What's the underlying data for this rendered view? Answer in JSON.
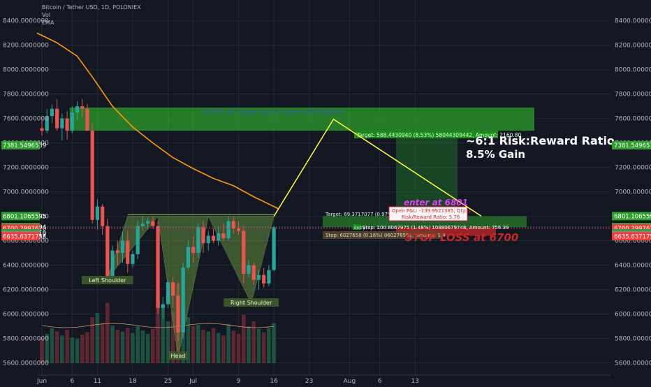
{
  "header": {
    "title": "Bitcoin / Tether USD, 1D, POLONIEX",
    "vol": "Vol",
    "ema": "EMA"
  },
  "colors": {
    "background": "#131722",
    "grid": "#232835",
    "up": "#26a69a",
    "down": "#ef5350",
    "ema": "#ff9800",
    "zone_green": "#2e9e2e",
    "trend_yellow": "#ffff33",
    "stop_red": "#ff1744",
    "shape_fill": "#5f8a3a"
  },
  "chart_data": {
    "type": "candlestick",
    "ylim": [
      5500,
      8570
    ],
    "y_ticks": [
      "8400.0000000",
      "8200.0000000",
      "8000.0000000",
      "7800.0000000",
      "7600.0000000",
      "7400.0000000",
      "7200.0000000",
      "7000.0000000",
      "6800.0000000",
      "6600.0000000",
      "6400.0000000",
      "6200.0000000",
      "6000.0000000",
      "5800.0000000",
      "5600.0000000"
    ],
    "y_tick_values": [
      8400,
      8200,
      8000,
      7800,
      7600,
      7400,
      7200,
      7000,
      6800,
      6600,
      6400,
      6200,
      6000,
      5800,
      5600
    ],
    "x_ticks": [
      "Jun",
      "6",
      "11",
      "18",
      "25",
      "Jul",
      "9",
      "16",
      "23",
      "Aug",
      "6",
      "13"
    ],
    "x_tick_days": [
      0,
      6,
      11,
      18,
      25,
      30,
      39,
      46,
      53,
      61,
      67,
      74
    ],
    "price_labels": [
      {
        "value": 7381.5496539,
        "text": "7381.5496539",
        "color": "#2e9e2e"
      },
      {
        "value": 6801.1065595,
        "text": "6801.1065595",
        "color": "#2e9e2e"
      },
      {
        "value": 6711.9136494,
        "text": "6711.9136494",
        "color": "#2e9e2e"
      },
      {
        "value": 6700.299762,
        "text": "6700.2997620",
        "color": "#ef3b3b"
      },
      {
        "value": 6661.114421,
        "text": "6661.1144210",
        "color": "#2e9e2e"
      },
      {
        "value": 6646.2399417,
        "text": "6646.2399417",
        "color": "#888888"
      },
      {
        "value": 6635.6371758,
        "text": "6635.6371758",
        "color": "#ef3b3b"
      }
    ],
    "candles": [
      {
        "d": 0,
        "o": 7520,
        "h": 7600,
        "l": 7460,
        "c": 7500
      },
      {
        "d": 1,
        "o": 7500,
        "h": 7680,
        "l": 7480,
        "c": 7620
      },
      {
        "d": 2,
        "o": 7620,
        "h": 7720,
        "l": 7560,
        "c": 7680
      },
      {
        "d": 3,
        "o": 7680,
        "h": 7760,
        "l": 7500,
        "c": 7520
      },
      {
        "d": 4,
        "o": 7520,
        "h": 7640,
        "l": 7420,
        "c": 7600
      },
      {
        "d": 5,
        "o": 7600,
        "h": 7660,
        "l": 7430,
        "c": 7500
      },
      {
        "d": 6,
        "o": 7500,
        "h": 7700,
        "l": 7480,
        "c": 7650
      },
      {
        "d": 7,
        "o": 7650,
        "h": 7740,
        "l": 7590,
        "c": 7700
      },
      {
        "d": 8,
        "o": 7700,
        "h": 7760,
        "l": 7610,
        "c": 7680
      },
      {
        "d": 9,
        "o": 7680,
        "h": 7720,
        "l": 7500,
        "c": 7500
      },
      {
        "d": 10,
        "o": 7500,
        "h": 7560,
        "l": 6740,
        "c": 6770
      },
      {
        "d": 11,
        "o": 6770,
        "h": 6940,
        "l": 6690,
        "c": 6880
      },
      {
        "d": 12,
        "o": 6880,
        "h": 6900,
        "l": 6650,
        "c": 6720
      },
      {
        "d": 13,
        "o": 6720,
        "h": 6780,
        "l": 6270,
        "c": 6310
      },
      {
        "d": 14,
        "o": 6310,
        "h": 6560,
        "l": 6280,
        "c": 6520
      },
      {
        "d": 15,
        "o": 6520,
        "h": 6600,
        "l": 6400,
        "c": 6500
      },
      {
        "d": 16,
        "o": 6500,
        "h": 6680,
        "l": 6420,
        "c": 6600
      },
      {
        "d": 17,
        "o": 6600,
        "h": 6680,
        "l": 6340,
        "c": 6410
      },
      {
        "d": 18,
        "o": 6410,
        "h": 6520,
        "l": 6380,
        "c": 6490
      },
      {
        "d": 19,
        "o": 6490,
        "h": 6760,
        "l": 6450,
        "c": 6720
      },
      {
        "d": 20,
        "o": 6720,
        "h": 6800,
        "l": 6680,
        "c": 6740
      },
      {
        "d": 21,
        "o": 6740,
        "h": 6790,
        "l": 6690,
        "c": 6760
      },
      {
        "d": 22,
        "o": 6760,
        "h": 6800,
        "l": 6700,
        "c": 6720
      },
      {
        "d": 23,
        "o": 6720,
        "h": 6760,
        "l": 6000,
        "c": 6050
      },
      {
        "d": 24,
        "o": 6050,
        "h": 6140,
        "l": 5960,
        "c": 6080
      },
      {
        "d": 25,
        "o": 6080,
        "h": 6280,
        "l": 6050,
        "c": 6260
      },
      {
        "d": 26,
        "o": 6260,
        "h": 6300,
        "l": 6050,
        "c": 6150
      },
      {
        "d": 27,
        "o": 6150,
        "h": 6260,
        "l": 5780,
        "c": 5850
      },
      {
        "d": 28,
        "o": 5850,
        "h": 6420,
        "l": 5800,
        "c": 6380
      },
      {
        "d": 29,
        "o": 6380,
        "h": 6600,
        "l": 6360,
        "c": 6550
      },
      {
        "d": 30,
        "o": 6550,
        "h": 6640,
        "l": 6420,
        "c": 6500
      },
      {
        "d": 31,
        "o": 6500,
        "h": 6740,
        "l": 6460,
        "c": 6710
      },
      {
        "d": 32,
        "o": 6710,
        "h": 6760,
        "l": 6500,
        "c": 6580
      },
      {
        "d": 33,
        "o": 6580,
        "h": 6680,
        "l": 6520,
        "c": 6640
      },
      {
        "d": 34,
        "o": 6640,
        "h": 6700,
        "l": 6580,
        "c": 6600
      },
      {
        "d": 35,
        "o": 6600,
        "h": 6720,
        "l": 6560,
        "c": 6660
      },
      {
        "d": 36,
        "o": 6660,
        "h": 6740,
        "l": 6600,
        "c": 6620
      },
      {
        "d": 37,
        "o": 6620,
        "h": 6800,
        "l": 6600,
        "c": 6760
      },
      {
        "d": 38,
        "o": 6760,
        "h": 6800,
        "l": 6660,
        "c": 6700
      },
      {
        "d": 39,
        "o": 6700,
        "h": 6760,
        "l": 6650,
        "c": 6680
      },
      {
        "d": 40,
        "o": 6680,
        "h": 6720,
        "l": 6250,
        "c": 6330
      },
      {
        "d": 41,
        "o": 6330,
        "h": 6440,
        "l": 6300,
        "c": 6400
      },
      {
        "d": 42,
        "o": 6400,
        "h": 6420,
        "l": 6240,
        "c": 6280
      },
      {
        "d": 43,
        "o": 6280,
        "h": 6360,
        "l": 6200,
        "c": 6320
      },
      {
        "d": 44,
        "o": 6320,
        "h": 6380,
        "l": 6220,
        "c": 6250
      },
      {
        "d": 45,
        "o": 6250,
        "h": 6400,
        "l": 6230,
        "c": 6360
      },
      {
        "d": 46,
        "o": 6360,
        "h": 6720,
        "l": 6350,
        "c": 6710
      }
    ],
    "volumes": [
      0.3,
      0.35,
      0.42,
      0.38,
      0.33,
      0.4,
      0.31,
      0.29,
      0.34,
      0.37,
      0.55,
      0.6,
      0.48,
      0.72,
      0.45,
      0.4,
      0.38,
      0.42,
      0.36,
      0.44,
      0.39,
      0.35,
      0.41,
      0.85,
      0.7,
      0.5,
      0.62,
      0.95,
      0.68,
      0.55,
      0.44,
      0.46,
      0.4,
      0.38,
      0.42,
      0.36,
      0.33,
      0.47,
      0.39,
      0.35,
      0.58,
      0.44,
      0.5,
      0.41,
      0.37,
      0.42,
      0.48
    ],
    "ema": [
      [
        -1,
        8300
      ],
      [
        3,
        8220
      ],
      [
        7,
        8110
      ],
      [
        10,
        7940
      ],
      [
        14,
        7700
      ],
      [
        18,
        7530
      ],
      [
        22,
        7400
      ],
      [
        26,
        7280
      ],
      [
        30,
        7190
      ],
      [
        34,
        7110
      ],
      [
        38,
        7050
      ],
      [
        42,
        6960
      ],
      [
        46,
        6880
      ],
      [
        47,
        6860
      ]
    ]
  },
  "annotations": {
    "zone_label": "NOTE: An upper and a lower annotation!",
    "target_label": "Target: 588.4430940 (8.53%) 58044309442, Amount: 2160.80",
    "risk_reward_big": "~6:1 Risk:Reward Ratio",
    "gain_big": "8.5% Gain",
    "enter_label": "enter at 6801",
    "stop_loss_label": "STOP LOSS at 6700",
    "open_pl": "Open P&L: -139.9921385, Qty: 2",
    "rr_ratio": "Risk/Reward Ratio: 5.76",
    "stop_box": "Stop: 100.8067975 (1.48%) 10880679748, Amount: 756.39",
    "stop_inner": "Stop: 6027658 (0.16%) 060276582, Amount: 1.4",
    "left_shoulder": "Left Shoulder",
    "head": "Head",
    "right_shoulder": "Right Shoulder",
    "small_tag_top": "Target: 69.3717077 (0.97%) 9374",
    "small_tag_ent": "Entry"
  }
}
